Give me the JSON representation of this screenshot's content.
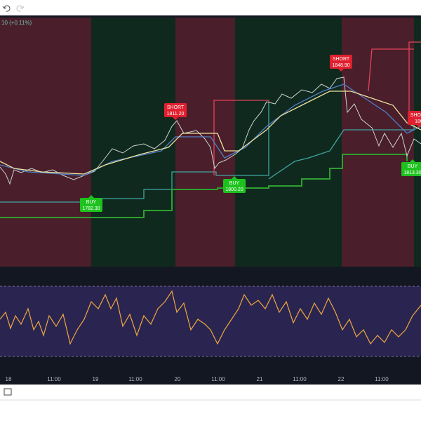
{
  "header": {
    "change": "10 (+0.11%)"
  },
  "labels": [
    {
      "side": "SHORT",
      "price": "1811.20"
    },
    {
      "side": "SHORT",
      "price": "1848.90"
    },
    {
      "side": "BUY",
      "price": "1782.30"
    },
    {
      "side": "BUY",
      "price": "1800.20"
    },
    {
      "side": "BUY",
      "price": "1813.30"
    },
    {
      "side": "SHORT",
      "price": "180"
    }
  ],
  "time_axis": [
    "18",
    "11:00",
    "19",
    "11:00",
    "20",
    "11:00",
    "21",
    "11:00",
    "22",
    "11:00"
  ]
}
